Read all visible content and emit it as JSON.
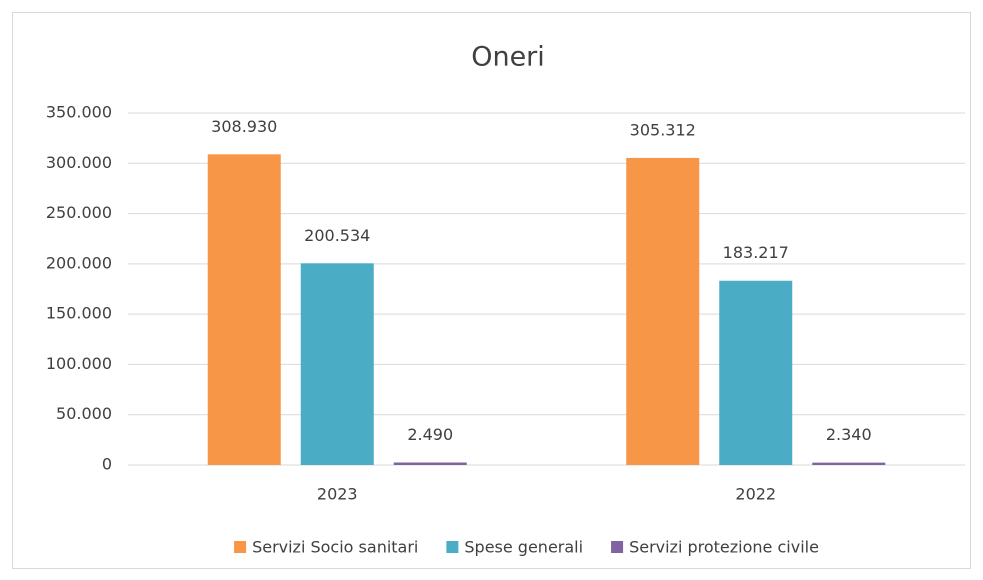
{
  "chart_data": {
    "type": "bar",
    "title": "Oneri",
    "categories": [
      "2023",
      "2022"
    ],
    "series": [
      {
        "name": "Servizi Socio sanitari",
        "color": "#f79646",
        "values": [
          308930,
          305312
        ],
        "value_labels": [
          "308.930",
          "305.312"
        ]
      },
      {
        "name": "Spese generali",
        "color": "#4bacc6",
        "values": [
          200534,
          183217
        ],
        "value_labels": [
          "200.534",
          "183.217"
        ]
      },
      {
        "name": "Servizi protezione civile",
        "color": "#8064a2",
        "values": [
          2490,
          2340
        ],
        "value_labels": [
          "2.490",
          "2.340"
        ]
      }
    ],
    "ylim": [
      0,
      350000
    ],
    "yticks": [
      0,
      {
        "value": 50000,
        "label": "50.000"
      },
      {
        "value": 100000,
        "label": "100.000"
      },
      {
        "value": 150000,
        "label": "150.000"
      },
      {
        "value": 200000,
        "label": "200.000"
      },
      {
        "value": 250000,
        "label": "250.000"
      },
      {
        "value": 300000,
        "label": "300.000"
      },
      {
        "value": 350000,
        "label": "350.000"
      }
    ],
    "grid": true,
    "legend": "bottom"
  }
}
